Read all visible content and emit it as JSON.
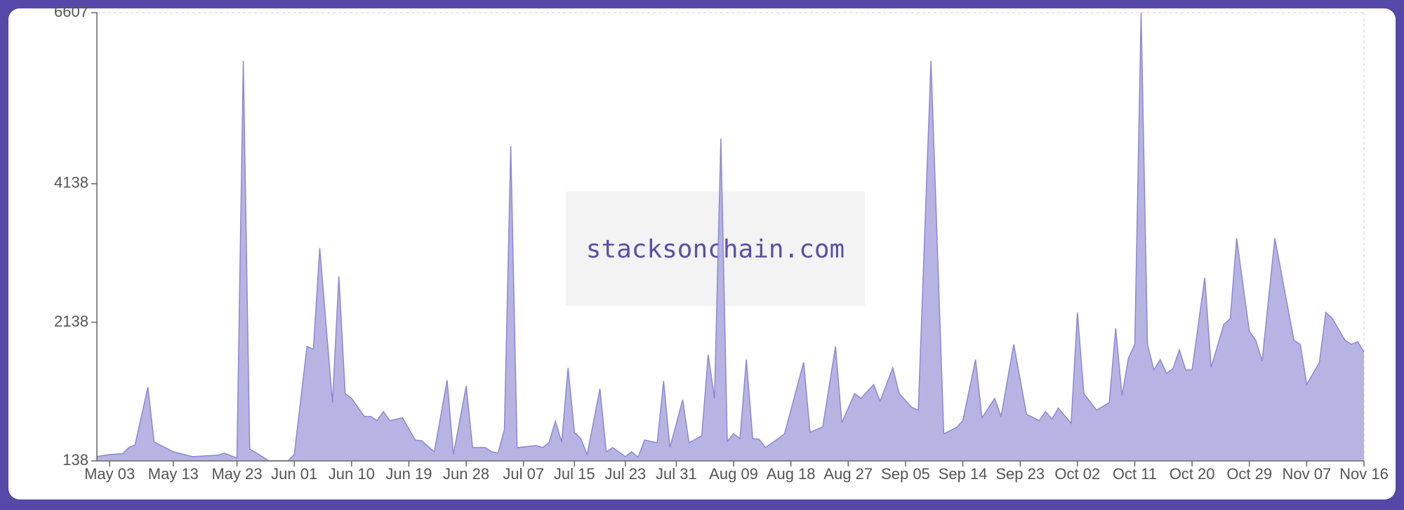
{
  "chart_data": {
    "type": "area",
    "watermark": "stacksonchain.com",
    "color": "#b3b0e3",
    "line_color": "#8d87d6",
    "x": [
      "May 01",
      "May 03",
      "May 05",
      "May 06",
      "May 07",
      "May 09",
      "May 10",
      "May 13",
      "May 16",
      "May 20",
      "May 21",
      "May 23",
      "May 24",
      "May 25",
      "May 27",
      "May 28",
      "May 31",
      "Jun 01",
      "Jun 03",
      "Jun 04",
      "Jun 05",
      "Jun 07",
      "Jun 08",
      "Jun 09",
      "Jun 10",
      "Jun 12",
      "Jun 13",
      "Jun 14",
      "Jun 15",
      "Jun 16",
      "Jun 18",
      "Jun 20",
      "Jun 21",
      "Jun 23",
      "Jun 25",
      "Jun 26",
      "Jun 28",
      "Jun 29",
      "Jul 01",
      "Jul 02",
      "Jul 03",
      "Jul 04",
      "Jul 05",
      "Jul 06",
      "Jul 09",
      "Jul 10",
      "Jul 11",
      "Jul 12",
      "Jul 13",
      "Jul 14",
      "Jul 15",
      "Jul 16",
      "Jul 17",
      "Jul 19",
      "Jul 20",
      "Jul 21",
      "Jul 23",
      "Jul 24",
      "Jul 25",
      "Jul 26",
      "Jul 28",
      "Jul 29",
      "Jul 30",
      "Aug 01",
      "Aug 02",
      "Aug 04",
      "Aug 05",
      "Aug 06",
      "Aug 07",
      "Aug 08",
      "Aug 09",
      "Aug 10",
      "Aug 11",
      "Aug 12",
      "Aug 13",
      "Aug 14",
      "Aug 16",
      "Aug 17",
      "Aug 20",
      "Aug 21",
      "Aug 23",
      "Aug 25",
      "Aug 26",
      "Aug 28",
      "Aug 29",
      "Aug 31",
      "Sep 01",
      "Sep 03",
      "Sep 04",
      "Sep 06",
      "Sep 07",
      "Sep 09",
      "Sep 11",
      "Sep 13",
      "Sep 14",
      "Sep 16",
      "Sep 17",
      "Sep 19",
      "Sep 20",
      "Sep 22",
      "Sep 24",
      "Sep 26",
      "Sep 27",
      "Sep 28",
      "Sep 29",
      "Oct 01",
      "Oct 02",
      "Oct 03",
      "Oct 05",
      "Oct 07",
      "Oct 08",
      "Oct 09",
      "Oct 10",
      "Oct 11",
      "Oct 12",
      "Oct 13",
      "Oct 14",
      "Oct 15",
      "Oct 16",
      "Oct 17",
      "Oct 18",
      "Oct 19",
      "Oct 20",
      "Oct 22",
      "Oct 23",
      "Oct 25",
      "Oct 26",
      "Oct 27",
      "Oct 29",
      "Oct 30",
      "Oct 31",
      "Nov 02",
      "Nov 05",
      "Nov 06",
      "Nov 07",
      "Nov 09",
      "Nov 10",
      "Nov 11",
      "Nov 13",
      "Nov 14",
      "Nov 15",
      "Nov 16"
    ],
    "values": [
      200,
      230,
      240,
      330,
      370,
      1200,
      410,
      270,
      200,
      220,
      250,
      180,
      5910,
      310,
      200,
      138,
      138,
      230,
      1790,
      1750,
      3210,
      980,
      2800,
      1110,
      1040,
      780,
      780,
      720,
      850,
      720,
      760,
      440,
      430,
      270,
      1300,
      230,
      1220,
      330,
      330,
      270,
      250,
      590,
      4680,
      330,
      360,
      330,
      400,
      710,
      410,
      1480,
      550,
      460,
      230,
      1180,
      270,
      330,
      200,
      270,
      190,
      440,
      400,
      1290,
      330,
      1020,
      400,
      500,
      1670,
      1040,
      4790,
      420,
      530,
      460,
      1600,
      460,
      450,
      330,
      460,
      530,
      1560,
      550,
      630,
      1790,
      690,
      1110,
      1040,
      1240,
      1000,
      1480,
      1110,
      910,
      870,
      5910,
      530,
      620,
      720,
      1600,
      760,
      1040,
      780,
      1820,
      810,
      720,
      850,
      740,
      900,
      680,
      2280,
      1110,
      870,
      980,
      2050,
      1080,
      1620,
      1820,
      6607,
      1820,
      1450,
      1600,
      1400,
      1470,
      1740,
      1450,
      1450,
      2780,
      1490,
      2110,
      2190,
      3350,
      2010,
      1880,
      1580,
      3350,
      1880,
      1820,
      1240,
      1560,
      2280,
      2200,
      1880,
      1820,
      1860,
      1710
    ],
    "xlim": [
      "May 01",
      "Nov 16"
    ],
    "xticks": [
      "May 03",
      "May 13",
      "May 23",
      "Jun 01",
      "Jun 10",
      "Jun 19",
      "Jun 28",
      "Jul 07",
      "Jul 15",
      "Jul 23",
      "Jul 31",
      "Aug 09",
      "Aug 18",
      "Aug 27",
      "Sep 05",
      "Sep 14",
      "Sep 23",
      "Oct 02",
      "Oct 11",
      "Oct 20",
      "Oct 29",
      "Nov 07",
      "Nov 16"
    ],
    "ylim": [
      138,
      6607
    ],
    "yticks": [
      138,
      2138,
      4138,
      6607
    ]
  }
}
